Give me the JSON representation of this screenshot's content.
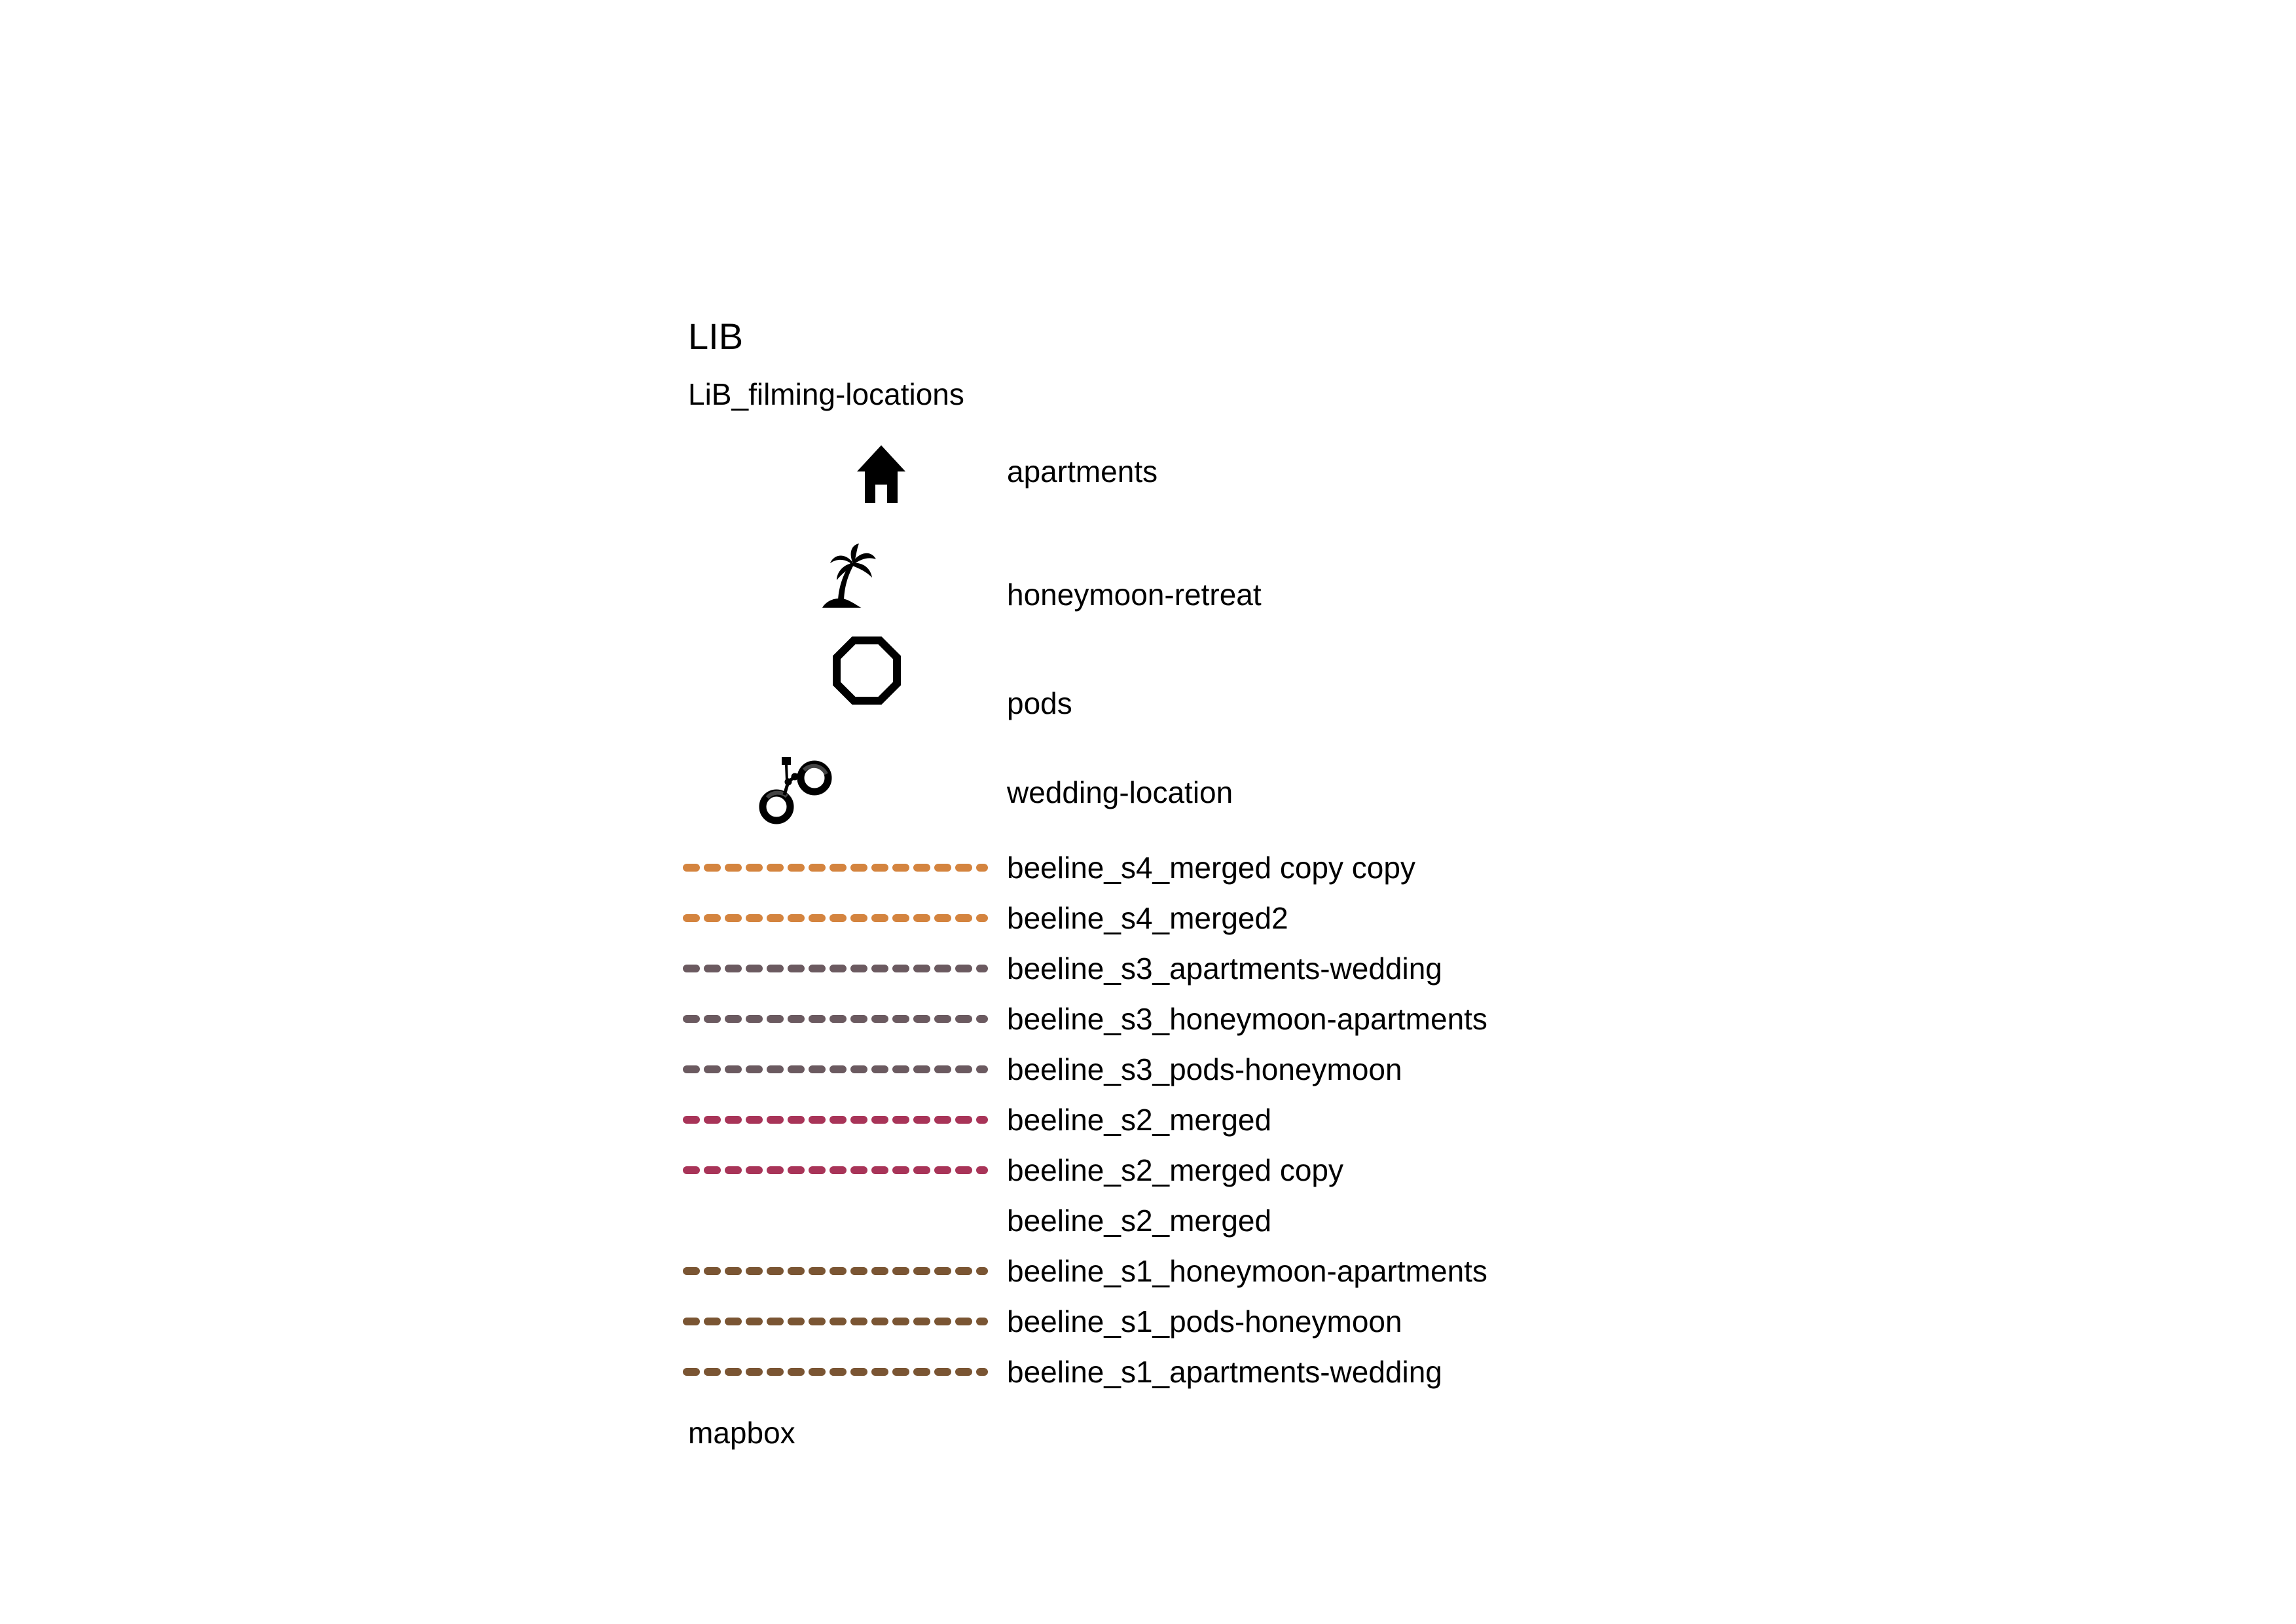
{
  "legend": {
    "title": "LIB",
    "subtitle": "LiB_filming-locations",
    "points": [
      {
        "label": "apartments",
        "icon": "house-icon"
      },
      {
        "label": "honeymoon-retreat",
        "icon": "palm-tree-icon"
      },
      {
        "label": "pods",
        "icon": "octagon-icon"
      },
      {
        "label": "wedding-location",
        "icon": "handcuffs-icon"
      }
    ],
    "lines": [
      {
        "label": "beeline_s4_merged copy copy",
        "color": "#D4843F",
        "shown": true
      },
      {
        "label": "beeline_s4_merged2",
        "color": "#D4843F",
        "shown": true
      },
      {
        "label": "beeline_s3_apartments-wedding",
        "color": "#6B5A60",
        "shown": true
      },
      {
        "label": "beeline_s3_honeymoon-apartments",
        "color": "#6B5A60",
        "shown": true
      },
      {
        "label": "beeline_s3_pods-honeymoon",
        "color": "#6B5A60",
        "shown": true
      },
      {
        "label": "beeline_s2_merged",
        "color": "#A83458",
        "shown": true
      },
      {
        "label": "beeline_s2_merged copy",
        "color": "#A83458",
        "shown": true
      },
      {
        "label": "beeline_s2_merged",
        "color": "#FFFFFF",
        "shown": false
      },
      {
        "label": "beeline_s1_honeymoon-apartments",
        "color": "#7A5533",
        "shown": true
      },
      {
        "label": "beeline_s1_pods-honeymoon",
        "color": "#7A5533",
        "shown": true
      },
      {
        "label": "beeline_s1_apartments-wedding",
        "color": "#7A5533",
        "shown": true
      }
    ],
    "footer": "mapbox"
  }
}
